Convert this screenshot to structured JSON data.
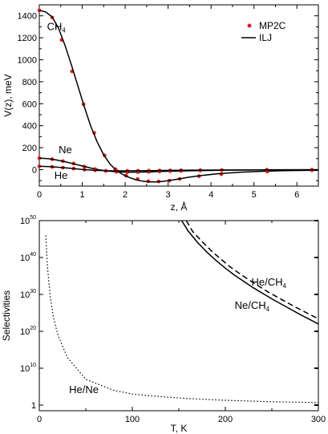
{
  "chart_data": [
    {
      "type": "line",
      "xlabel": "z, Å",
      "ylabel": "V(z), meV",
      "xlim": [
        0,
        6.5
      ],
      "ylim": [
        -150,
        1500
      ],
      "xticks": [
        0,
        1,
        2,
        3,
        4,
        5,
        6
      ],
      "yticks": [
        0,
        200,
        400,
        600,
        800,
        1000,
        1200,
        1400
      ],
      "grid": false,
      "legend_position": "top-right",
      "legend": [
        {
          "label": "MP2C",
          "marker": "dot",
          "color": "#e0201b"
        },
        {
          "label": "ILJ",
          "marker": "line",
          "color": "#000000"
        }
      ],
      "annotations": [
        {
          "main": "CH",
          "sub": "4",
          "x": 0.18,
          "y": 1270
        },
        {
          "main": "Ne",
          "sub": "",
          "x": 0.45,
          "y": 150
        },
        {
          "main": "He",
          "sub": "",
          "x": 0.35,
          "y": -85
        }
      ],
      "series": [
        {
          "name": "CH4 MP2C",
          "style": "points",
          "color": "#e0201b",
          "x": [
            0.0,
            0.3,
            0.52,
            0.76,
            1.03,
            1.28,
            1.52,
            1.77,
            2.02,
            2.29,
            2.54,
            2.78,
            3.03,
            3.27,
            3.72,
            4.24,
            5.31,
            6.35
          ],
          "y": [
            1450,
            1385,
            1180,
            895,
            595,
            335,
            130,
            5,
            -55,
            -85,
            -105,
            -108,
            -100,
            -85,
            -60,
            -42,
            -18,
            -6
          ]
        },
        {
          "name": "CH4 ILJ",
          "style": "line",
          "color": "#000000",
          "x": [
            0.0,
            0.15,
            0.3,
            0.45,
            0.6,
            0.75,
            0.9,
            1.05,
            1.2,
            1.35,
            1.5,
            1.65,
            1.8,
            1.95,
            2.1,
            2.25,
            2.4,
            2.55,
            2.7,
            2.85,
            3.0,
            3.2,
            3.5,
            3.8,
            4.2,
            4.7,
            5.2,
            5.7,
            6.2,
            6.5
          ],
          "y": [
            1450,
            1435,
            1390,
            1285,
            1130,
            950,
            760,
            570,
            395,
            250,
            135,
            50,
            -8,
            -45,
            -72,
            -92,
            -105,
            -111,
            -112,
            -108,
            -101,
            -88,
            -68,
            -52,
            -36,
            -23,
            -15,
            -10,
            -7,
            -6
          ]
        },
        {
          "name": "Ne MP2C",
          "style": "points",
          "color": "#e0201b",
          "x": [
            0.0,
            0.3,
            0.55,
            0.8,
            1.05,
            1.3,
            1.55,
            1.8,
            2.05,
            2.3,
            2.55,
            2.8,
            3.05,
            3.3,
            3.75,
            4.25,
            5.3,
            6.35
          ],
          "y": [
            105,
            95,
            78,
            55,
            28,
            5,
            -12,
            -20,
            -23,
            -22,
            -20,
            -17,
            -14,
            -12,
            -8,
            -5,
            -2,
            -1
          ]
        },
        {
          "name": "Ne ILJ",
          "style": "line",
          "color": "#000000",
          "x": [
            0.0,
            0.2,
            0.4,
            0.6,
            0.8,
            1.0,
            1.2,
            1.4,
            1.6,
            1.8,
            2.0,
            2.2,
            2.4,
            2.6,
            2.8,
            3.0,
            3.4,
            3.8,
            4.3,
            5.0,
            5.6,
            6.5
          ],
          "y": [
            105,
            100,
            88,
            72,
            53,
            33,
            14,
            -2,
            -13,
            -19,
            -22,
            -23,
            -22,
            -20,
            -17,
            -15,
            -11,
            -8,
            -5,
            -3,
            -2,
            -1
          ]
        },
        {
          "name": "He MP2C",
          "style": "points",
          "color": "#e0201b",
          "x": [
            0.0,
            0.3,
            0.55,
            0.8,
            1.05,
            1.3,
            1.55,
            1.8,
            2.05,
            2.3,
            2.55,
            2.8,
            3.05,
            3.3,
            3.75,
            4.25,
            5.3,
            6.35
          ],
          "y": [
            30,
            25,
            18,
            9,
            0,
            -6,
            -10,
            -11,
            -11,
            -10,
            -9,
            -8,
            -7,
            -6,
            -4,
            -3,
            -1,
            -1
          ]
        },
        {
          "name": "He ILJ",
          "style": "line",
          "color": "#000000",
          "x": [
            0.0,
            0.25,
            0.5,
            0.75,
            1.0,
            1.25,
            1.5,
            1.75,
            2.0,
            2.3,
            2.6,
            3.0,
            3.5,
            4.0,
            4.6,
            5.4,
            6.5
          ],
          "y": [
            30,
            27,
            20,
            11,
            2,
            -5,
            -9,
            -11,
            -11,
            -10,
            -9,
            -7,
            -5,
            -4,
            -3,
            -1,
            -1
          ]
        }
      ]
    },
    {
      "type": "line",
      "xlabel": "T, K",
      "ylabel": "Selectivities",
      "xlim": [
        0,
        300
      ],
      "ylim": [
        0.03,
        100000000000000000000000000000000000000000000000000
      ],
      "yscale": "log",
      "xticks": [
        0,
        100,
        200,
        300
      ],
      "ytick_labels": [
        {
          "main": "1",
          "exp": ""
        },
        {
          "main": "10",
          "exp": "10"
        },
        {
          "main": "10",
          "exp": "20"
        },
        {
          "main": "10",
          "exp": "30"
        },
        {
          "main": "10",
          "exp": "40"
        },
        {
          "main": "10",
          "exp": "50"
        }
      ],
      "yticks": [
        1,
        10000000000,
        100000000000000000000,
        1000000000000000000000000000000,
        10000000000000000000000000000000000000000,
        100000000000000000000000000000000000000000000000000
      ],
      "grid": false,
      "annotations": [
        {
          "main": "He/CH",
          "sub": "4",
          "x": 228,
          "y": 250000000000000000000000000000000
        },
        {
          "main": "Ne/CH",
          "sub": "4",
          "x": 210,
          "y": 130000000000000000000000000
        },
        {
          "main": "He/Ne",
          "sub": "",
          "x": 32,
          "y": 2000
        }
      ],
      "series": [
        {
          "name": "He/CH4",
          "style": "solid",
          "x": [
            153,
            160,
            170,
            180,
            190,
            200,
            210,
            220,
            230,
            240,
            250,
            260,
            270,
            280,
            290,
            300
          ],
          "y": [
            100000000000000000000000000000000000000000000000000,
            1.6e+47,
            1.3e+44,
            3.2e+41,
            1.6e+39,
            1.3e+37,
            1.6e+35,
            3.2e+33,
            6.3e+31,
            2e+30,
            6.3e+28,
            2.5e+27,
            1e+26,
            4e+24,
            2e+23,
            1e+22
          ]
        },
        {
          "name": "Ne/CH4",
          "style": "dashed",
          "x": [
            158,
            165,
            175,
            185,
            195,
            205,
            215,
            225,
            235,
            245,
            255,
            265,
            275,
            285,
            300
          ],
          "y": [
            100000000000000000000000000000000000000000000000000,
            1e+47,
            2e+44,
            6.3e+41,
            4e+39,
            3.2e+37,
            5e+35,
            1e+34,
            2.5e+32,
            6.3e+30,
            2.5e+29,
            1e+28,
            4e+26,
            2e+25,
            2.5e+23
          ]
        },
        {
          "name": "He/Ne",
          "style": "dotted",
          "x": [
            7,
            8,
            9,
            10,
            12,
            15,
            20,
            25,
            30,
            40,
            50,
            60,
            80,
            100,
            130,
            160,
            200,
            250,
            300
          ],
          "y": [
            1e+46,
            1e+41,
            1e+37,
            1e+34,
            1e+29,
            1e+24,
            1e+19,
            1e+16,
            10000000000000,
            10000000000,
            10000000,
            1000000,
            10000,
            1000,
            200,
            60,
            20,
            8,
            5
          ]
        }
      ]
    }
  ]
}
